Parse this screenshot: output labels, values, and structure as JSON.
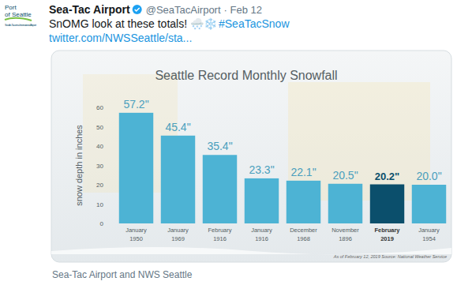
{
  "tweet": {
    "logo": [
      "Port",
      "of Seattle",
      "Seattle-Tacoma International Airport"
    ],
    "name": "Sea-Tac Airport",
    "handle": "@SeaTacAirport",
    "date": "· Feb 12",
    "text": "SnOMG look at these totals! 🌨️❄️",
    "hashtag": "#SeaTacSnow",
    "link": "twitter.com/NWSSeattle/sta...",
    "caption": "Sea-Tac Airport and NWS Seattle"
  },
  "chart_data": {
    "type": "bar",
    "title": "Seattle Record Monthly Snowfall",
    "y_label": "snow depth in inches",
    "categories": [
      "January 1950",
      "January 1969",
      "February 1916",
      "January 1916",
      "December 1968",
      "November 1896",
      "February 2019",
      "January 1954"
    ],
    "values": [
      57.2,
      45.4,
      35.4,
      23.3,
      22.1,
      20.5,
      20.2,
      20.0
    ],
    "value_labels": [
      "57.2\"",
      "45.4\"",
      "35.4\"",
      "23.3\"",
      "22.1\"",
      "20.5\"",
      "20.2\"",
      "20.0\""
    ],
    "color": "#4db3d4",
    "colors": [
      "#4db3d4",
      "#4db3d4",
      "#4db3d4",
      "#4db3d4",
      "#4db3d4",
      "#4db3d4",
      "#0b4f6c",
      "#4db3d4"
    ],
    "ylim": [
      0,
      60
    ],
    "yticks": [
      0,
      10,
      20,
      30,
      40,
      50,
      60
    ],
    "grid": false,
    "data_labels": true,
    "source": "As of February 12, 2019 Source: National Weather Service"
  }
}
